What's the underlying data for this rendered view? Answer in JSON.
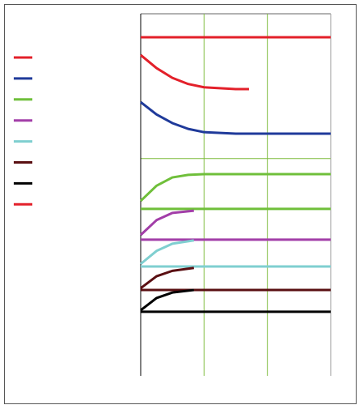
{
  "chart_data": {
    "type": "line",
    "xlim": [
      0,
      3
    ],
    "ylim": [
      0,
      10
    ],
    "xticks": [
      0,
      1,
      2,
      3
    ],
    "yticks": [
      6
    ],
    "grid": true,
    "grid_color": "#7dbb3c",
    "legend": {
      "position": "left",
      "colors": [
        "#e3202a",
        "#1f3a9a",
        "#6fbf3a",
        "#a23ea8",
        "#7fcfd0",
        "#5a0f12",
        "#000000",
        "#e3202a"
      ]
    },
    "series": [
      {
        "color": "#e3202a",
        "x": [
          0,
          3
        ],
        "values": [
          9.35,
          9.35
        ]
      },
      {
        "color": "#e3202a",
        "x": [
          0,
          0.25,
          0.5,
          0.75,
          1,
          1.5,
          1.71
        ],
        "values": [
          8.86,
          8.5,
          8.23,
          8.06,
          7.97,
          7.92,
          7.92
        ]
      },
      {
        "color": "#1f3a9a",
        "x": [
          0,
          0.25,
          0.5,
          0.75,
          1,
          1.5,
          2,
          2.5,
          3
        ],
        "values": [
          7.56,
          7.22,
          6.98,
          6.82,
          6.73,
          6.69,
          6.69,
          6.69,
          6.69
        ]
      },
      {
        "color": "#6fbf3a",
        "x": [
          0,
          0.25,
          0.5,
          0.75,
          1,
          1.5,
          2,
          2.5,
          3
        ],
        "values": [
          4.83,
          5.25,
          5.48,
          5.55,
          5.57,
          5.57,
          5.57,
          5.57,
          5.57
        ]
      },
      {
        "color": "#6fbf3a",
        "x": [
          0,
          3
        ],
        "values": [
          4.61,
          4.61
        ]
      },
      {
        "color": "#a23ea8",
        "x": [
          0,
          0.25,
          0.5,
          0.84
        ],
        "values": [
          3.89,
          4.3,
          4.5,
          4.56
        ]
      },
      {
        "color": "#a23ea8",
        "x": [
          0,
          3
        ],
        "values": [
          3.76,
          3.76
        ]
      },
      {
        "color": "#7fcfd0",
        "x": [
          0,
          0.25,
          0.5,
          0.84
        ],
        "values": [
          3.09,
          3.45,
          3.65,
          3.74
        ]
      },
      {
        "color": "#7fcfd0",
        "x": [
          0,
          3
        ],
        "values": [
          3.02,
          3.02
        ]
      },
      {
        "color": "#5a0f12",
        "x": [
          0,
          0.25,
          0.5,
          0.84
        ],
        "values": [
          2.42,
          2.75,
          2.9,
          2.98
        ]
      },
      {
        "color": "#5a0f12",
        "x": [
          0,
          3
        ],
        "values": [
          2.37,
          2.37
        ]
      },
      {
        "color": "#000000",
        "x": [
          0,
          0.25,
          0.5,
          0.84
        ],
        "values": [
          1.81,
          2.15,
          2.3,
          2.37
        ]
      },
      {
        "color": "#000000",
        "x": [
          0,
          3
        ],
        "values": [
          1.77,
          1.77
        ]
      }
    ]
  }
}
